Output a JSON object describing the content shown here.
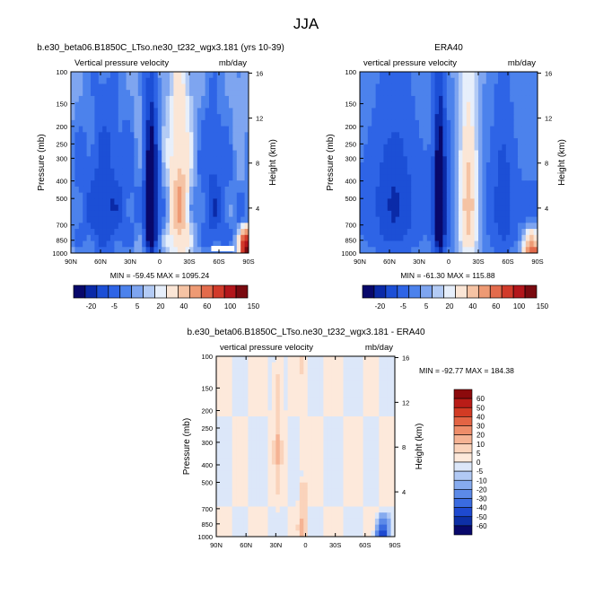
{
  "page_title": "JJA",
  "colors": {
    "diverging": [
      "#08086b",
      "#0a2aa8",
      "#1c4fd6",
      "#2e64e6",
      "#4c82ec",
      "#7ea5f0",
      "#b3cbf5",
      "#e7effb",
      "#fbe6d6",
      "#f5c3a4",
      "#ee9a74",
      "#e36b4c",
      "#d13a2a",
      "#b3161b",
      "#7a0a10"
    ],
    "diff": [
      "#08086b",
      "#0d2fa6",
      "#1e49d0",
      "#3a6be0",
      "#5c8ae8",
      "#86abef",
      "#b1c9f4",
      "#dce7f9",
      "#fde9db",
      "#fad3bb",
      "#f5b394",
      "#ee8d6a",
      "#e36444",
      "#d23b24",
      "#b91c17",
      "#8c0a0c"
    ]
  },
  "chart_data": [
    {
      "type": "heatmap",
      "panel": "model",
      "title": "b.e30_beta06.B1850C_LTso.ne30_t232_wgx3.181 (yrs 10-39)",
      "left_label": "Vertical pressure velocity",
      "right_label": "mb/day",
      "ylabel": "Pressure (mb)",
      "y2label": "Height (km)",
      "y_ticks": [
        "100",
        "150",
        "200",
        "250",
        "300",
        "400",
        "500",
        "700",
        "850",
        "1000"
      ],
      "y2_ticks": [
        "16",
        "12",
        "8",
        "4"
      ],
      "x_ticks": [
        "90N",
        "60N",
        "30N",
        "0",
        "30S",
        "60S",
        "90S"
      ],
      "stats": "MIN = -59.45   MAX = 1095.24",
      "levels": [
        "-20",
        "-5",
        "5",
        "20",
        "40",
        "60",
        "100",
        "150"
      ],
      "min": -59.45,
      "max": 1095.24
    },
    {
      "type": "heatmap",
      "panel": "obs",
      "title": "ERA40",
      "left_label": "vertical pressure velocity",
      "right_label": "mb/day",
      "ylabel": "Pressure (mb)",
      "y2label": "Height (km)",
      "y_ticks": [
        "100",
        "150",
        "200",
        "250",
        "300",
        "400",
        "500",
        "700",
        "850",
        "1000"
      ],
      "y2_ticks": [
        "16",
        "12",
        "8",
        "4"
      ],
      "x_ticks": [
        "90N",
        "60N",
        "30N",
        "0",
        "30S",
        "60S",
        "90S"
      ],
      "stats": "MIN = -61.30   MAX = 115.88",
      "levels": [
        "-20",
        "-5",
        "5",
        "20",
        "40",
        "60",
        "100",
        "150"
      ],
      "min": -61.3,
      "max": 115.88
    },
    {
      "type": "heatmap",
      "panel": "diff",
      "title": "b.e30_beta06.B1850C_LTso.ne30_t232_wgx3.181 - ERA40",
      "left_label": "vertical pressure velocity",
      "right_label": "mb/day",
      "ylabel": "Pressure (mb)",
      "y2label": "Height (km)",
      "y_ticks": [
        "100",
        "150",
        "200",
        "250",
        "300",
        "400",
        "500",
        "700",
        "850",
        "1000"
      ],
      "y2_ticks": [
        "16",
        "12",
        "8",
        "4"
      ],
      "x_ticks": [
        "90N",
        "60N",
        "30N",
        "0",
        "30S",
        "60S",
        "90S"
      ],
      "stats": "MIN = -92.77   MAX = 184.38",
      "levels": [
        "60",
        "50",
        "40",
        "30",
        "20",
        "10",
        "5",
        "0",
        "-5",
        "-10",
        "-20",
        "-30",
        "-40",
        "-50",
        "-60"
      ],
      "min": -92.77,
      "max": 184.38
    }
  ]
}
